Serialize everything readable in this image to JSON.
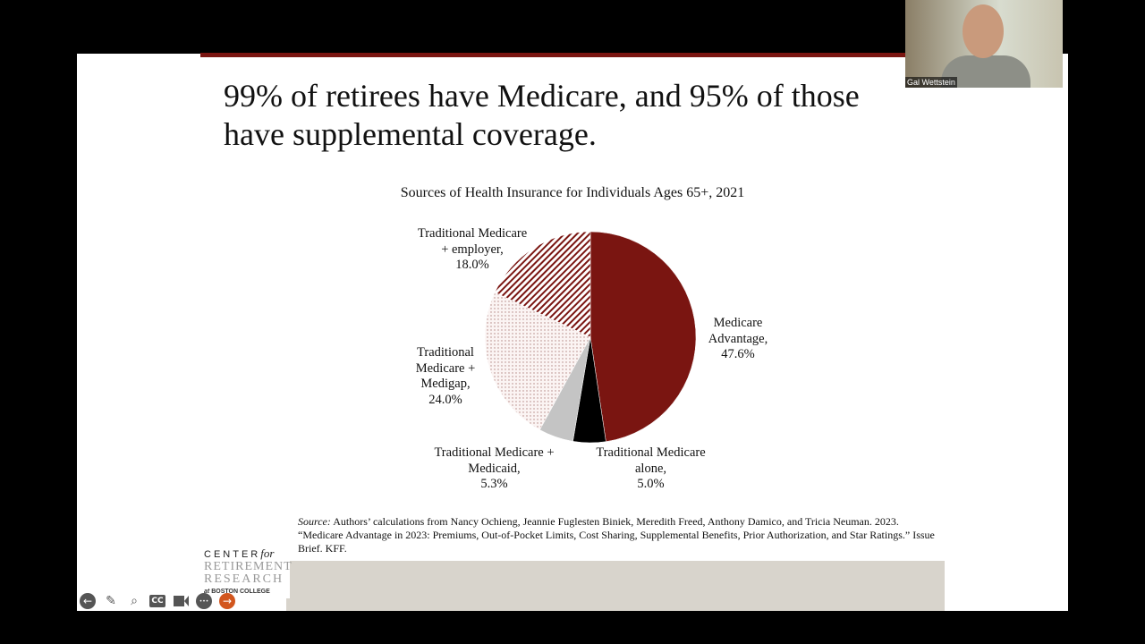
{
  "slide": {
    "title_line1": "99% of retirees have Medicare, and 95% of those",
    "title_line2": "have supplemental coverage.",
    "source_label": "Source:",
    "source_text": " Authors’ calculations from Nancy Ochieng, Jeannie Fuglesten Biniek, Meredith Freed, Anthony Damico, and Tricia Neuman. 2023. “Medicare Advantage in 2023: Premiums, Out-of-Pocket Limits, Cost Sharing, Supplemental Benefits, Prior Authorization, and Star Ratings.” Issue Brief. KFF.",
    "logo": {
      "line1": "CENTER",
      "line1b": "for",
      "line2": "RETIREMENT",
      "line3": "RESEARCH",
      "line4a": "at",
      "line4": "BOSTON COLLEGE"
    }
  },
  "video": {
    "name": "Gal Wettstein"
  },
  "toolbar": {
    "icons": [
      "back-arrow-icon",
      "pencil-icon",
      "search-icon",
      "cc-icon",
      "camera-icon",
      "more-icon",
      "forward-arrow-icon"
    ],
    "cc": "CC",
    "more": "•••",
    "back": "←",
    "forward": "→"
  },
  "chart_data": {
    "type": "pie",
    "title": "Sources of Health Insurance for Individuals Ages 65+, 2021",
    "slices": [
      {
        "name": "Medicare Advantage",
        "value": 47.6,
        "label": [
          "Medicare",
          "Advantage,",
          "47.6%"
        ],
        "color": "#7a1511",
        "fill": "solid"
      },
      {
        "name": "Traditional Medicare alone",
        "value": 5.0,
        "label": [
          "Traditional Medicare",
          "alone,",
          "5.0%"
        ],
        "color": "#000000",
        "fill": "solid"
      },
      {
        "name": "Traditional Medicare + Medicaid",
        "value": 5.3,
        "label": [
          "Traditional Medicare +",
          "Medicaid,",
          "5.3%"
        ],
        "color": "#c4c4c4",
        "fill": "solid"
      },
      {
        "name": "Traditional Medicare + Medigap",
        "value": 24.0,
        "label": [
          "Traditional",
          "Medicare +",
          "Medigap,",
          "24.0%"
        ],
        "color": "#f3e6e4",
        "fill": "dots"
      },
      {
        "name": "Traditional Medicare + employer",
        "value": 18.0,
        "label": [
          "Traditional Medicare",
          "+ employer,",
          "18.0%"
        ],
        "color": "#7a1511",
        "fill": "hatch"
      }
    ],
    "start": "12 o'clock",
    "direction": "clockwise"
  }
}
